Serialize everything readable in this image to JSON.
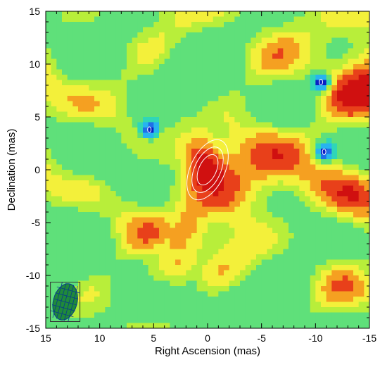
{
  "chart_data": {
    "type": "heatmap",
    "title": "",
    "xlabel": "Right Ascension (mas)",
    "ylabel": "Declination (mas)",
    "xlim": [
      15,
      -15
    ],
    "ylim": [
      -15,
      15
    ],
    "x_ticks": [
      15,
      10,
      5,
      0,
      -5,
      -10,
      -15
    ],
    "y_ticks": [
      -15,
      -10,
      -5,
      0,
      5,
      10,
      15
    ],
    "x_tick_labels": [
      "15",
      "10",
      "5",
      "0",
      "-5",
      "-10",
      "-15"
    ],
    "y_tick_labels": [
      "-15",
      "-10",
      "-5",
      "0",
      "5",
      "10",
      "15"
    ],
    "colormap": [
      "#0a1fc4",
      "#1f6fe8",
      "#27b4f0",
      "#2fd6b8",
      "#5fe07a",
      "#b8ee3a",
      "#f3f03a",
      "#f5a021",
      "#e8401a",
      "#d01010"
    ],
    "background_level": 0.45,
    "source": {
      "ra": 0.0,
      "dec": 0.0,
      "peak_level": 1.0,
      "major_axis": 5.5,
      "minor_axis": 3.0,
      "position_angle_deg": 25
    },
    "extended_emission": {
      "ra_start": 0.5,
      "dec_start": -1.5,
      "ra_end": 3.0,
      "dec_end": -9.0,
      "level": 0.62
    },
    "contour_levels": [
      0.7,
      0.8,
      0.9
    ],
    "contour_color": "#ffffff",
    "negative_spots": [
      {
        "ra": 5.4,
        "dec": 3.8,
        "level": 0.05
      },
      {
        "ra": -10.5,
        "dec": 8.3,
        "level": 0.04
      },
      {
        "ra": -10.8,
        "dec": 1.7,
        "level": 0.06
      }
    ],
    "beam": {
      "ra": 13.2,
      "dec": -12.5,
      "major": 3.5,
      "minor": 2.2,
      "position_angle_deg": 15
    }
  }
}
